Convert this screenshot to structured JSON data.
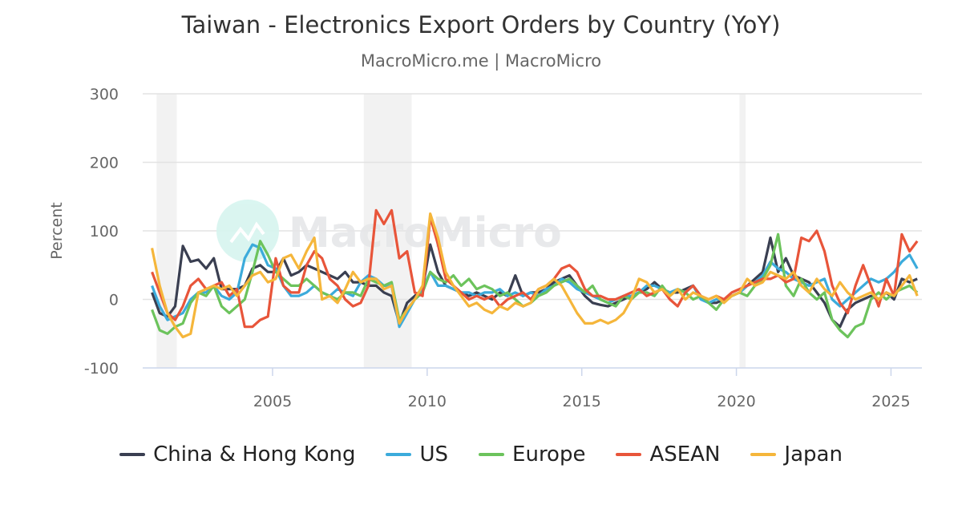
{
  "chart_data": {
    "type": "line",
    "title": "Taiwan - Electronics Export Orders by Country (YoY)",
    "subtitle": "MacroMicro.me | MacroMicro",
    "watermark": "MacroMicro",
    "ylabel": "Percent",
    "xlabel": "",
    "ylim": [
      -100,
      300
    ],
    "xlim": [
      2000.8,
      2026.0
    ],
    "yticks": [
      "300",
      "200",
      "100",
      "0",
      "-100"
    ],
    "ytick_values": [
      300,
      200,
      100,
      0,
      -100
    ],
    "xticks": [
      "2005",
      "2010",
      "2015",
      "2020",
      "2025"
    ],
    "xtick_values": [
      2005,
      2010,
      2015,
      2020,
      2025
    ],
    "grid": true,
    "legend_position": "bottom",
    "recessions": [
      [
        2001.25,
        2001.9
      ],
      [
        2007.95,
        2009.5
      ],
      [
        2020.1,
        2020.3
      ]
    ],
    "x_start": 2001.1,
    "x_step_years": 0.25,
    "series": [
      {
        "name": "China & Hong Kong",
        "color": "#3a3f51",
        "values": [
          10,
          -20,
          -25,
          -10,
          78,
          55,
          58,
          45,
          60,
          15,
          15,
          15,
          20,
          45,
          50,
          40,
          40,
          60,
          35,
          40,
          50,
          45,
          40,
          35,
          30,
          40,
          25,
          25,
          20,
          20,
          10,
          5,
          -35,
          -5,
          5,
          15,
          80,
          40,
          20,
          15,
          10,
          5,
          10,
          5,
          0,
          10,
          5,
          35,
          5,
          10,
          10,
          15,
          25,
          30,
          35,
          20,
          5,
          -5,
          -8,
          -10,
          -5,
          0,
          5,
          10,
          15,
          25,
          15,
          10,
          10,
          15,
          20,
          5,
          -5,
          -5,
          0,
          5,
          10,
          20,
          30,
          40,
          90,
          40,
          60,
          35,
          30,
          25,
          10,
          -5,
          -30,
          -40,
          -15,
          -5,
          0,
          5,
          0,
          10,
          0,
          30,
          25,
          30
        ]
      },
      {
        "name": "US",
        "color": "#3cabdb",
        "values": [
          20,
          -10,
          -30,
          -25,
          -20,
          0,
          10,
          10,
          20,
          5,
          0,
          10,
          60,
          80,
          75,
          50,
          45,
          20,
          5,
          5,
          10,
          20,
          10,
          5,
          15,
          10,
          5,
          25,
          35,
          30,
          20,
          20,
          -40,
          -20,
          0,
          15,
          40,
          20,
          20,
          15,
          10,
          10,
          5,
          10,
          10,
          15,
          5,
          10,
          5,
          10,
          5,
          15,
          20,
          30,
          25,
          15,
          10,
          5,
          0,
          -5,
          0,
          5,
          5,
          10,
          20,
          20,
          15,
          10,
          15,
          10,
          20,
          0,
          -5,
          0,
          0,
          5,
          10,
          20,
          25,
          35,
          55,
          45,
          40,
          30,
          25,
          20,
          25,
          30,
          0,
          -10,
          0,
          10,
          20,
          30,
          25,
          30,
          40,
          55,
          65,
          45
        ]
      },
      {
        "name": "Europe",
        "color": "#6cc35c",
        "values": [
          -15,
          -45,
          -50,
          -40,
          -35,
          -5,
          10,
          5,
          20,
          -10,
          -20,
          -10,
          0,
          40,
          85,
          65,
          40,
          30,
          20,
          20,
          30,
          20,
          10,
          5,
          0,
          10,
          10,
          5,
          30,
          25,
          20,
          25,
          -30,
          -15,
          0,
          10,
          40,
          30,
          25,
          35,
          20,
          30,
          15,
          20,
          15,
          5,
          10,
          0,
          -10,
          -5,
          5,
          10,
          20,
          25,
          30,
          20,
          10,
          20,
          0,
          -5,
          -10,
          5,
          0,
          10,
          10,
          5,
          20,
          5,
          15,
          10,
          0,
          5,
          -5,
          -15,
          0,
          5,
          10,
          5,
          20,
          30,
          50,
          95,
          20,
          5,
          30,
          10,
          0,
          10,
          -30,
          -45,
          -55,
          -40,
          -35,
          0,
          10,
          0,
          10,
          15,
          20,
          10
        ]
      },
      {
        "name": "ASEAN",
        "color": "#e8553a",
        "values": [
          40,
          10,
          -20,
          -30,
          -10,
          20,
          30,
          15,
          20,
          25,
          5,
          15,
          -40,
          -40,
          -30,
          -25,
          60,
          20,
          10,
          10,
          50,
          70,
          60,
          30,
          20,
          0,
          -10,
          -5,
          20,
          130,
          110,
          130,
          60,
          70,
          10,
          5,
          120,
          80,
          30,
          20,
          10,
          0,
          5,
          0,
          5,
          -10,
          0,
          5,
          10,
          0,
          15,
          20,
          30,
          45,
          50,
          40,
          15,
          5,
          5,
          0,
          0,
          5,
          10,
          15,
          5,
          10,
          15,
          0,
          -10,
          10,
          20,
          5,
          0,
          5,
          0,
          10,
          15,
          20,
          25,
          30,
          30,
          35,
          25,
          30,
          90,
          85,
          100,
          70,
          20,
          -5,
          -20,
          20,
          50,
          20,
          -10,
          30,
          5,
          95,
          70,
          85
        ]
      },
      {
        "name": "Japan",
        "color": "#f5b63b",
        "values": [
          75,
          20,
          -20,
          -40,
          -55,
          -50,
          10,
          15,
          20,
          15,
          20,
          5,
          20,
          35,
          40,
          25,
          30,
          60,
          65,
          45,
          70,
          90,
          0,
          5,
          -5,
          15,
          40,
          25,
          30,
          30,
          15,
          20,
          -35,
          -15,
          0,
          20,
          125,
          90,
          40,
          20,
          5,
          -10,
          -5,
          -15,
          -20,
          -10,
          -15,
          -5,
          -10,
          -5,
          15,
          20,
          30,
          20,
          0,
          -20,
          -35,
          -35,
          -30,
          -35,
          -30,
          -20,
          0,
          30,
          25,
          10,
          15,
          5,
          15,
          0,
          10,
          5,
          0,
          5,
          -5,
          5,
          10,
          30,
          20,
          25,
          40,
          35,
          30,
          40,
          20,
          10,
          30,
          15,
          5,
          25,
          10,
          0,
          5,
          10,
          0,
          10,
          5,
          20,
          35,
          5
        ]
      }
    ]
  }
}
